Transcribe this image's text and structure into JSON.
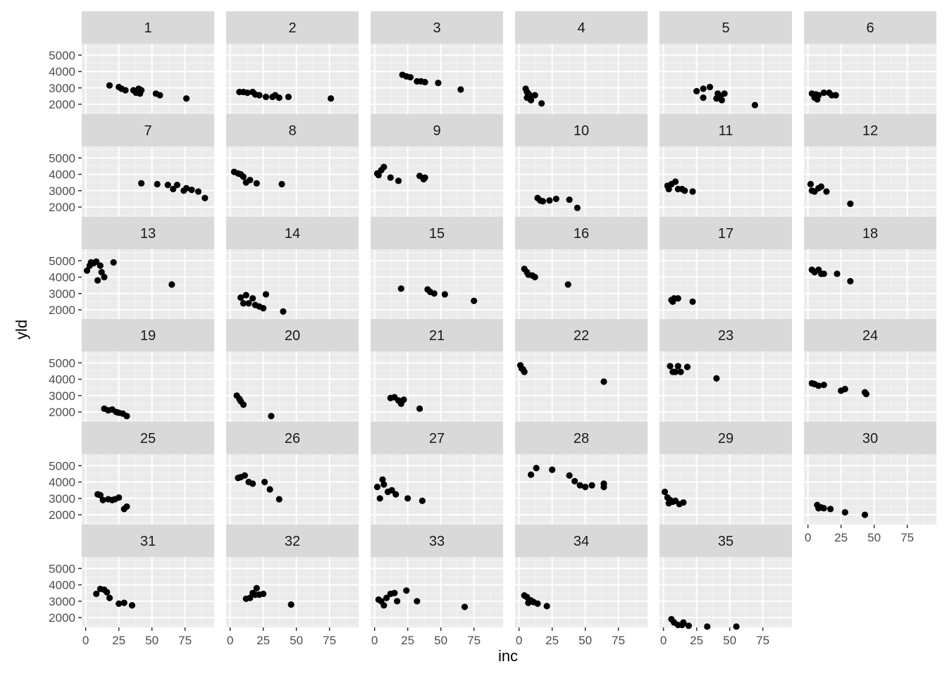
{
  "chart_data": {
    "type": "scatter",
    "facet_type": "wrap",
    "xlabel": "inc",
    "ylabel": "yld",
    "xlim": [
      -3,
      97
    ],
    "ylim": [
      1400,
      5700
    ],
    "x_ticks": [
      0,
      25,
      50,
      75
    ],
    "y_ticks": [
      2000,
      3000,
      4000,
      5000
    ],
    "grid": true,
    "colors": {
      "panel_background": "#ebebeb",
      "grid_major": "#ffffff",
      "grid_minor": "#f5f5f5",
      "strip_background": "#d9d9d9",
      "point": "#000000",
      "tick_label": "#4d4d4d"
    },
    "panels": [
      {
        "label": "1",
        "points": [
          [
            18,
            3150
          ],
          [
            25,
            3050
          ],
          [
            27,
            2950
          ],
          [
            30,
            2850
          ],
          [
            36,
            2850
          ],
          [
            38,
            2700
          ],
          [
            40,
            2950
          ],
          [
            42,
            2850
          ],
          [
            41,
            2650
          ],
          [
            53,
            2650
          ],
          [
            56,
            2550
          ],
          [
            76,
            2350
          ]
        ]
      },
      {
        "label": "2",
        "points": [
          [
            7,
            2750
          ],
          [
            10,
            2750
          ],
          [
            13,
            2700
          ],
          [
            17,
            2750
          ],
          [
            19,
            2600
          ],
          [
            22,
            2550
          ],
          [
            27,
            2450
          ],
          [
            32,
            2450
          ],
          [
            34,
            2550
          ],
          [
            37,
            2400
          ],
          [
            44,
            2450
          ],
          [
            76,
            2350
          ]
        ]
      },
      {
        "label": "3",
        "points": [
          [
            21,
            3800
          ],
          [
            24,
            3700
          ],
          [
            27,
            3650
          ],
          [
            32,
            3400
          ],
          [
            35,
            3400
          ],
          [
            38,
            3350
          ],
          [
            48,
            3300
          ],
          [
            65,
            2900
          ]
        ]
      },
      {
        "label": "4",
        "points": [
          [
            5,
            2950
          ],
          [
            6,
            2750
          ],
          [
            7,
            2650
          ],
          [
            8,
            2550
          ],
          [
            6,
            2400
          ],
          [
            9,
            2250
          ],
          [
            12,
            2550
          ],
          [
            17,
            2050
          ]
        ]
      },
      {
        "label": "5",
        "points": [
          [
            25,
            2800
          ],
          [
            30,
            2950
          ],
          [
            35,
            3050
          ],
          [
            30,
            2400
          ],
          [
            41,
            2650
          ],
          [
            43,
            2500
          ],
          [
            46,
            2650
          ],
          [
            40,
            2350
          ],
          [
            44,
            2250
          ],
          [
            69,
            1950
          ]
        ]
      },
      {
        "label": "6",
        "points": [
          [
            3,
            2650
          ],
          [
            6,
            2600
          ],
          [
            5,
            2400
          ],
          [
            8,
            2550
          ],
          [
            12,
            2700
          ],
          [
            16,
            2700
          ],
          [
            18,
            2550
          ],
          [
            21,
            2550
          ],
          [
            7,
            2300
          ]
        ]
      },
      {
        "label": "7",
        "points": [
          [
            42,
            3450
          ],
          [
            54,
            3400
          ],
          [
            62,
            3350
          ],
          [
            66,
            3100
          ],
          [
            69,
            3350
          ],
          [
            74,
            3000
          ],
          [
            76,
            3150
          ],
          [
            80,
            3050
          ],
          [
            85,
            2950
          ],
          [
            90,
            2550
          ]
        ]
      },
      {
        "label": "8",
        "points": [
          [
            3,
            4150
          ],
          [
            6,
            4050
          ],
          [
            8,
            4000
          ],
          [
            10,
            3850
          ],
          [
            12,
            3500
          ],
          [
            15,
            3650
          ],
          [
            20,
            3450
          ],
          [
            39,
            3400
          ]
        ]
      },
      {
        "label": "9",
        "points": [
          [
            2,
            4050
          ],
          [
            3,
            3950
          ],
          [
            5,
            4250
          ],
          [
            7,
            4450
          ],
          [
            12,
            3800
          ],
          [
            18,
            3600
          ],
          [
            34,
            3900
          ],
          [
            37,
            3700
          ],
          [
            38,
            3800
          ]
        ]
      },
      {
        "label": "10",
        "points": [
          [
            14,
            2550
          ],
          [
            16,
            2400
          ],
          [
            18,
            2350
          ],
          [
            23,
            2400
          ],
          [
            28,
            2500
          ],
          [
            38,
            2450
          ],
          [
            44,
            1950
          ]
        ]
      },
      {
        "label": "11",
        "points": [
          [
            3,
            3300
          ],
          [
            4,
            3100
          ],
          [
            6,
            3400
          ],
          [
            9,
            3550
          ],
          [
            11,
            3100
          ],
          [
            14,
            3100
          ],
          [
            16,
            3000
          ],
          [
            22,
            2950
          ]
        ]
      },
      {
        "label": "12",
        "points": [
          [
            2,
            3400
          ],
          [
            3,
            3000
          ],
          [
            5,
            2950
          ],
          [
            8,
            3150
          ],
          [
            10,
            3250
          ],
          [
            14,
            2950
          ],
          [
            32,
            2200
          ]
        ]
      },
      {
        "label": "13",
        "points": [
          [
            1,
            4400
          ],
          [
            3,
            4700
          ],
          [
            4,
            4900
          ],
          [
            6,
            4850
          ],
          [
            8,
            4950
          ],
          [
            11,
            4700
          ],
          [
            9,
            3800
          ],
          [
            12,
            4300
          ],
          [
            14,
            4000
          ],
          [
            21,
            4900
          ],
          [
            65,
            3550
          ]
        ]
      },
      {
        "label": "14",
        "points": [
          [
            8,
            2750
          ],
          [
            10,
            2400
          ],
          [
            12,
            2900
          ],
          [
            14,
            2400
          ],
          [
            17,
            2700
          ],
          [
            19,
            2300
          ],
          [
            22,
            2200
          ],
          [
            25,
            2100
          ],
          [
            27,
            2950
          ],
          [
            40,
            1900
          ]
        ]
      },
      {
        "label": "15",
        "points": [
          [
            20,
            3300
          ],
          [
            40,
            3250
          ],
          [
            42,
            3100
          ],
          [
            45,
            3000
          ],
          [
            53,
            2950
          ],
          [
            75,
            2550
          ]
        ]
      },
      {
        "label": "16",
        "points": [
          [
            4,
            4500
          ],
          [
            6,
            4300
          ],
          [
            7,
            4150
          ],
          [
            10,
            4100
          ],
          [
            12,
            4000
          ],
          [
            37,
            3550
          ]
        ]
      },
      {
        "label": "17",
        "points": [
          [
            6,
            2600
          ],
          [
            8,
            2700
          ],
          [
            11,
            2700
          ],
          [
            7,
            2500
          ],
          [
            22,
            2500
          ]
        ]
      },
      {
        "label": "18",
        "points": [
          [
            3,
            4450
          ],
          [
            5,
            4300
          ],
          [
            8,
            4450
          ],
          [
            10,
            4200
          ],
          [
            12,
            4200
          ],
          [
            22,
            4200
          ],
          [
            32,
            3750
          ]
        ]
      },
      {
        "label": "19",
        "points": [
          [
            14,
            2200
          ],
          [
            17,
            2100
          ],
          [
            20,
            2150
          ],
          [
            23,
            2000
          ],
          [
            25,
            1950
          ],
          [
            28,
            1900
          ],
          [
            31,
            1750
          ]
        ]
      },
      {
        "label": "20",
        "points": [
          [
            5,
            3000
          ],
          [
            7,
            2800
          ],
          [
            8,
            2650
          ],
          [
            10,
            2450
          ],
          [
            31,
            1750
          ]
        ]
      },
      {
        "label": "21",
        "points": [
          [
            12,
            2850
          ],
          [
            15,
            2900
          ],
          [
            18,
            2700
          ],
          [
            20,
            2500
          ],
          [
            22,
            2750
          ],
          [
            34,
            2200
          ]
        ]
      },
      {
        "label": "22",
        "points": [
          [
            1,
            4850
          ],
          [
            2,
            4650
          ],
          [
            3,
            4600
          ],
          [
            4,
            4450
          ],
          [
            64,
            3850
          ]
        ]
      },
      {
        "label": "23",
        "points": [
          [
            5,
            4800
          ],
          [
            7,
            4450
          ],
          [
            9,
            4450
          ],
          [
            11,
            4800
          ],
          [
            13,
            4450
          ],
          [
            18,
            4750
          ],
          [
            40,
            4050
          ]
        ]
      },
      {
        "label": "24",
        "points": [
          [
            3,
            3750
          ],
          [
            5,
            3700
          ],
          [
            8,
            3600
          ],
          [
            12,
            3650
          ],
          [
            25,
            3300
          ],
          [
            28,
            3400
          ],
          [
            43,
            3200
          ],
          [
            44,
            3100
          ]
        ]
      },
      {
        "label": "25",
        "points": [
          [
            9,
            3250
          ],
          [
            11,
            3200
          ],
          [
            13,
            2900
          ],
          [
            17,
            2950
          ],
          [
            20,
            2900
          ],
          [
            22,
            2950
          ],
          [
            25,
            3050
          ],
          [
            29,
            2350
          ],
          [
            31,
            2500
          ]
        ]
      },
      {
        "label": "26",
        "points": [
          [
            6,
            4250
          ],
          [
            8,
            4300
          ],
          [
            11,
            4400
          ],
          [
            14,
            4000
          ],
          [
            17,
            3900
          ],
          [
            26,
            4000
          ],
          [
            30,
            3550
          ],
          [
            37,
            2950
          ]
        ]
      },
      {
        "label": "27",
        "points": [
          [
            2,
            3700
          ],
          [
            4,
            3000
          ],
          [
            6,
            4150
          ],
          [
            7,
            3850
          ],
          [
            10,
            3400
          ],
          [
            13,
            3500
          ],
          [
            16,
            3250
          ],
          [
            25,
            3000
          ],
          [
            36,
            2850
          ]
        ]
      },
      {
        "label": "28",
        "points": [
          [
            9,
            4450
          ],
          [
            13,
            4850
          ],
          [
            25,
            4750
          ],
          [
            38,
            4400
          ],
          [
            42,
            4050
          ],
          [
            46,
            3800
          ],
          [
            50,
            3700
          ],
          [
            55,
            3800
          ],
          [
            64,
            3900
          ],
          [
            64,
            3700
          ]
        ]
      },
      {
        "label": "29",
        "points": [
          [
            1,
            3400
          ],
          [
            3,
            3050
          ],
          [
            4,
            2700
          ],
          [
            5,
            2900
          ],
          [
            7,
            2800
          ],
          [
            9,
            2850
          ],
          [
            12,
            2650
          ],
          [
            15,
            2750
          ]
        ]
      },
      {
        "label": "30",
        "points": [
          [
            7,
            2600
          ],
          [
            8,
            2400
          ],
          [
            10,
            2450
          ],
          [
            12,
            2400
          ],
          [
            17,
            2350
          ],
          [
            28,
            2150
          ],
          [
            43,
            2000
          ]
        ]
      },
      {
        "label": "31",
        "points": [
          [
            8,
            3450
          ],
          [
            11,
            3750
          ],
          [
            14,
            3700
          ],
          [
            16,
            3550
          ],
          [
            18,
            3200
          ],
          [
            25,
            2850
          ],
          [
            29,
            2900
          ],
          [
            35,
            2750
          ]
        ]
      },
      {
        "label": "32",
        "points": [
          [
            12,
            3150
          ],
          [
            15,
            3200
          ],
          [
            17,
            3500
          ],
          [
            19,
            3400
          ],
          [
            20,
            3800
          ],
          [
            22,
            3400
          ],
          [
            25,
            3450
          ],
          [
            46,
            2800
          ]
        ]
      },
      {
        "label": "33",
        "points": [
          [
            3,
            3100
          ],
          [
            5,
            3000
          ],
          [
            7,
            2750
          ],
          [
            9,
            3200
          ],
          [
            12,
            3450
          ],
          [
            15,
            3500
          ],
          [
            17,
            3000
          ],
          [
            24,
            3650
          ],
          [
            32,
            3000
          ],
          [
            68,
            2650
          ]
        ]
      },
      {
        "label": "34",
        "points": [
          [
            4,
            3350
          ],
          [
            6,
            3250
          ],
          [
            7,
            2900
          ],
          [
            9,
            3050
          ],
          [
            11,
            2950
          ],
          [
            14,
            2850
          ],
          [
            21,
            2700
          ]
        ]
      },
      {
        "label": "35",
        "points": [
          [
            6,
            1900
          ],
          [
            8,
            1700
          ],
          [
            11,
            1550
          ],
          [
            14,
            1550
          ],
          [
            15,
            1700
          ],
          [
            19,
            1500
          ],
          [
            33,
            1450
          ],
          [
            55,
            1450
          ]
        ]
      }
    ]
  }
}
